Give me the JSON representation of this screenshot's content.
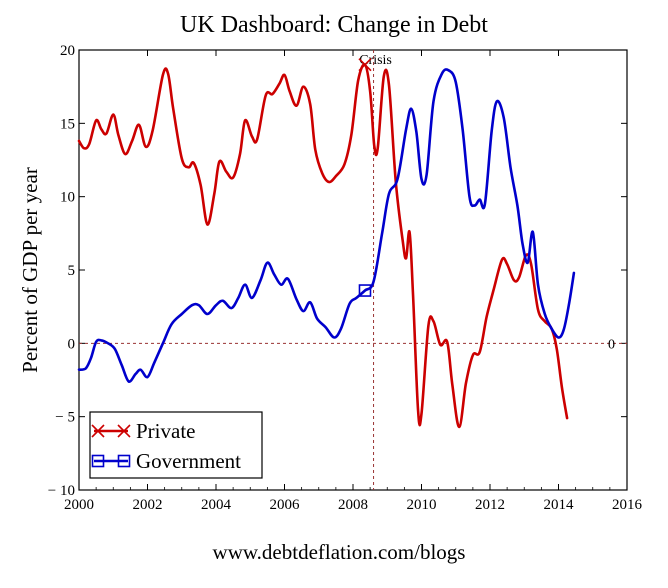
{
  "chart_data": {
    "type": "line",
    "title": "UK Dashboard: Change in Debt",
    "xlabel": "",
    "ylabel": "Percent of GDP per year",
    "footer": "www.debtdeflation.com/blogs",
    "xlim": [
      2000,
      2016
    ],
    "ylim": [
      -10,
      20
    ],
    "x_ticks": [
      2000,
      2002,
      2004,
      2006,
      2008,
      2010,
      2012,
      2014,
      2016
    ],
    "y_ticks": [
      -10,
      -5,
      0,
      5,
      10,
      15,
      20
    ],
    "y_tick_labels": [
      "− 10",
      "− 5",
      "0",
      "5",
      "10",
      "15",
      "20"
    ],
    "grid": false,
    "legend_position": "bottom-left",
    "annotations": [
      {
        "text": "Crisis",
        "x": 2008.6,
        "type": "vertical-dashed-line"
      },
      {
        "text": "0",
        "y": 0,
        "type": "horizontal-dashed-line"
      }
    ],
    "series": [
      {
        "name": "Private",
        "color": "#cc0000",
        "marker": "x",
        "marker_at": 2008.35,
        "points": [
          [
            2000.0,
            13.8
          ],
          [
            2000.15,
            13.3
          ],
          [
            2000.3,
            13.6
          ],
          [
            2000.5,
            15.2
          ],
          [
            2000.65,
            14.6
          ],
          [
            2000.8,
            14.3
          ],
          [
            2001.0,
            15.6
          ],
          [
            2001.15,
            14.2
          ],
          [
            2001.35,
            12.9
          ],
          [
            2001.55,
            13.8
          ],
          [
            2001.75,
            14.9
          ],
          [
            2001.95,
            13.4
          ],
          [
            2002.15,
            14.5
          ],
          [
            2002.45,
            18.3
          ],
          [
            2002.6,
            18.4
          ],
          [
            2002.75,
            16.0
          ],
          [
            2003.0,
            12.6
          ],
          [
            2003.2,
            12.0
          ],
          [
            2003.35,
            12.3
          ],
          [
            2003.55,
            10.8
          ],
          [
            2003.75,
            8.1
          ],
          [
            2003.95,
            10.2
          ],
          [
            2004.1,
            12.4
          ],
          [
            2004.3,
            11.7
          ],
          [
            2004.5,
            11.3
          ],
          [
            2004.7,
            12.9
          ],
          [
            2004.85,
            15.2
          ],
          [
            2005.05,
            14.1
          ],
          [
            2005.2,
            13.9
          ],
          [
            2005.45,
            16.9
          ],
          [
            2005.65,
            17.0
          ],
          [
            2005.85,
            17.7
          ],
          [
            2006.0,
            18.3
          ],
          [
            2006.15,
            17.2
          ],
          [
            2006.35,
            16.2
          ],
          [
            2006.55,
            17.5
          ],
          [
            2006.75,
            16.3
          ],
          [
            2006.9,
            13.2
          ],
          [
            2007.1,
            11.6
          ],
          [
            2007.3,
            11.0
          ],
          [
            2007.5,
            11.4
          ],
          [
            2007.75,
            12.2
          ],
          [
            2007.95,
            14.2
          ],
          [
            2008.15,
            17.9
          ],
          [
            2008.35,
            19.0
          ],
          [
            2008.5,
            17.2
          ],
          [
            2008.62,
            13.5
          ],
          [
            2008.72,
            13.3
          ],
          [
            2008.9,
            18.2
          ],
          [
            2009.05,
            17.6
          ],
          [
            2009.25,
            11.0
          ],
          [
            2009.45,
            7.0
          ],
          [
            2009.55,
            5.8
          ],
          [
            2009.65,
            7.6
          ],
          [
            2009.75,
            3.5
          ],
          [
            2009.9,
            -4.6
          ],
          [
            2010.0,
            -4.8
          ],
          [
            2010.2,
            1.2
          ],
          [
            2010.35,
            1.5
          ],
          [
            2010.55,
            -0.1
          ],
          [
            2010.75,
            0.1
          ],
          [
            2010.9,
            -2.8
          ],
          [
            2011.1,
            -5.7
          ],
          [
            2011.3,
            -2.7
          ],
          [
            2011.5,
            -0.8
          ],
          [
            2011.7,
            -0.6
          ],
          [
            2011.9,
            1.8
          ],
          [
            2012.1,
            3.6
          ],
          [
            2012.35,
            5.7
          ],
          [
            2012.5,
            5.4
          ],
          [
            2012.7,
            4.3
          ],
          [
            2012.85,
            4.5
          ],
          [
            2013.05,
            6.0
          ],
          [
            2013.2,
            5.4
          ],
          [
            2013.4,
            2.3
          ],
          [
            2013.6,
            1.5
          ],
          [
            2013.8,
            1.0
          ],
          [
            2013.95,
            -0.4
          ],
          [
            2014.1,
            -3.0
          ],
          [
            2014.25,
            -5.1
          ]
        ]
      },
      {
        "name": "Government",
        "color": "#0000cc",
        "marker": "square",
        "marker_at": 2008.35,
        "points": [
          [
            2000.0,
            -1.8
          ],
          [
            2000.2,
            -1.7
          ],
          [
            2000.35,
            -1.0
          ],
          [
            2000.5,
            0.1
          ],
          [
            2000.65,
            0.2
          ],
          [
            2000.85,
            0.0
          ],
          [
            2001.05,
            -0.4
          ],
          [
            2001.25,
            -1.5
          ],
          [
            2001.45,
            -2.6
          ],
          [
            2001.65,
            -2.1
          ],
          [
            2001.8,
            -1.8
          ],
          [
            2002.0,
            -2.3
          ],
          [
            2002.2,
            -1.3
          ],
          [
            2002.45,
            0.0
          ],
          [
            2002.7,
            1.3
          ],
          [
            2003.0,
            2.0
          ],
          [
            2003.3,
            2.6
          ],
          [
            2003.5,
            2.6
          ],
          [
            2003.75,
            2.0
          ],
          [
            2004.0,
            2.6
          ],
          [
            2004.2,
            2.9
          ],
          [
            2004.45,
            2.4
          ],
          [
            2004.65,
            3.1
          ],
          [
            2004.85,
            4.0
          ],
          [
            2005.05,
            3.1
          ],
          [
            2005.3,
            4.3
          ],
          [
            2005.5,
            5.5
          ],
          [
            2005.7,
            4.7
          ],
          [
            2005.9,
            4.0
          ],
          [
            2006.1,
            4.4
          ],
          [
            2006.35,
            3.0
          ],
          [
            2006.55,
            2.2
          ],
          [
            2006.75,
            2.8
          ],
          [
            2006.95,
            1.7
          ],
          [
            2007.2,
            1.1
          ],
          [
            2007.45,
            0.4
          ],
          [
            2007.65,
            1.0
          ],
          [
            2007.9,
            2.7
          ],
          [
            2008.1,
            3.1
          ],
          [
            2008.35,
            3.6
          ],
          [
            2008.6,
            4.2
          ],
          [
            2008.85,
            7.5
          ],
          [
            2009.05,
            10.2
          ],
          [
            2009.3,
            11.2
          ],
          [
            2009.55,
            14.6
          ],
          [
            2009.7,
            16.0
          ],
          [
            2009.85,
            14.4
          ],
          [
            2010.0,
            11.2
          ],
          [
            2010.15,
            11.5
          ],
          [
            2010.35,
            16.5
          ],
          [
            2010.6,
            18.4
          ],
          [
            2010.8,
            18.6
          ],
          [
            2011.0,
            17.8
          ],
          [
            2011.2,
            14.6
          ],
          [
            2011.4,
            10.0
          ],
          [
            2011.55,
            9.4
          ],
          [
            2011.7,
            9.8
          ],
          [
            2011.85,
            9.5
          ],
          [
            2012.05,
            14.5
          ],
          [
            2012.2,
            16.5
          ],
          [
            2012.4,
            15.4
          ],
          [
            2012.6,
            12.0
          ],
          [
            2012.8,
            9.4
          ],
          [
            2012.95,
            6.8
          ],
          [
            2013.1,
            5.5
          ],
          [
            2013.25,
            7.6
          ],
          [
            2013.4,
            4.0
          ],
          [
            2013.6,
            2.0
          ],
          [
            2013.8,
            1.0
          ],
          [
            2014.0,
            0.4
          ],
          [
            2014.15,
            0.9
          ],
          [
            2014.3,
            2.6
          ],
          [
            2014.45,
            4.8
          ]
        ]
      }
    ]
  }
}
